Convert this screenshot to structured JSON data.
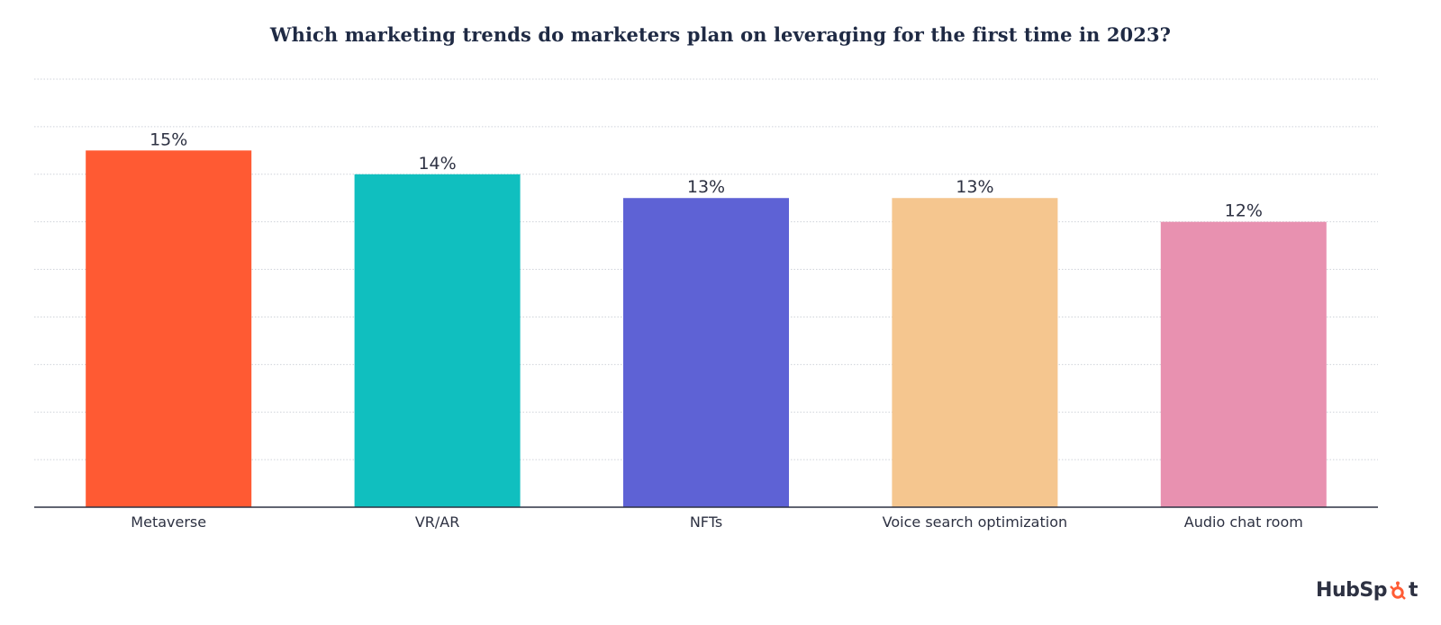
{
  "chart_data": {
    "type": "bar",
    "title": "Which marketing trends do marketers plan on leveraging for the first time in 2023?",
    "categories": [
      "Metaverse",
      "VR/AR",
      "NFTs",
      "Voice search optimization",
      "Audio chat room"
    ],
    "values": [
      15,
      14,
      13,
      13,
      12
    ],
    "value_labels": [
      "15%",
      "14%",
      "13%",
      "13%",
      "12%"
    ],
    "colors": [
      "#ff5a33",
      "#10bfbf",
      "#5e62d5",
      "#f5c68f",
      "#e891b0"
    ],
    "xlabel": "",
    "ylabel": "",
    "ylim": [
      0,
      18
    ],
    "grid": true,
    "legend": "none"
  },
  "brand": {
    "logo_text": "HubSpot",
    "accent_color": "#ff5c35"
  }
}
